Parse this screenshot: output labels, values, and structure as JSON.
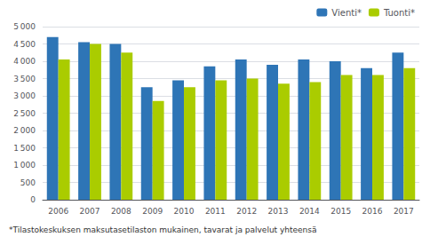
{
  "chart_data": {
    "type": "bar",
    "categories": [
      "2006",
      "2007",
      "2008",
      "2009",
      "2010",
      "2011",
      "2012",
      "2013",
      "2014",
      "2015",
      "2016",
      "2017"
    ],
    "series": [
      {
        "name": "Vienti*",
        "color": "#2E75B6",
        "values": [
          4700,
          4550,
          4500,
          3250,
          3450,
          3850,
          4050,
          3900,
          4050,
          4000,
          3800,
          4250
        ]
      },
      {
        "name": "Tuonti*",
        "color": "#AACC00",
        "values": [
          4050,
          4500,
          4250,
          2850,
          3250,
          3450,
          3500,
          3350,
          3400,
          3600,
          3600,
          3800
        ]
      }
    ],
    "ylim": [
      0,
      5000
    ],
    "yticks": [
      0,
      500,
      {
        "value": 1000,
        "label": "1 000"
      },
      {
        "value": 1500,
        "label": "1 500"
      },
      {
        "value": 2000,
        "label": "2 000"
      },
      {
        "value": 2500,
        "label": "2 500"
      },
      {
        "value": 3000,
        "label": "3 000"
      },
      {
        "value": 3500,
        "label": "3 500"
      },
      {
        "value": 4000,
        "label": "4 000"
      },
      {
        "value": 4500,
        "label": "4 500"
      },
      {
        "value": 5000,
        "label": "5 000"
      }
    ],
    "grid": true,
    "legend": "upper right",
    "annotations": [
      "*Tilastokeskuksen maksutasetilaston mukainen, tavarat ja palvelut yhteensä"
    ]
  }
}
